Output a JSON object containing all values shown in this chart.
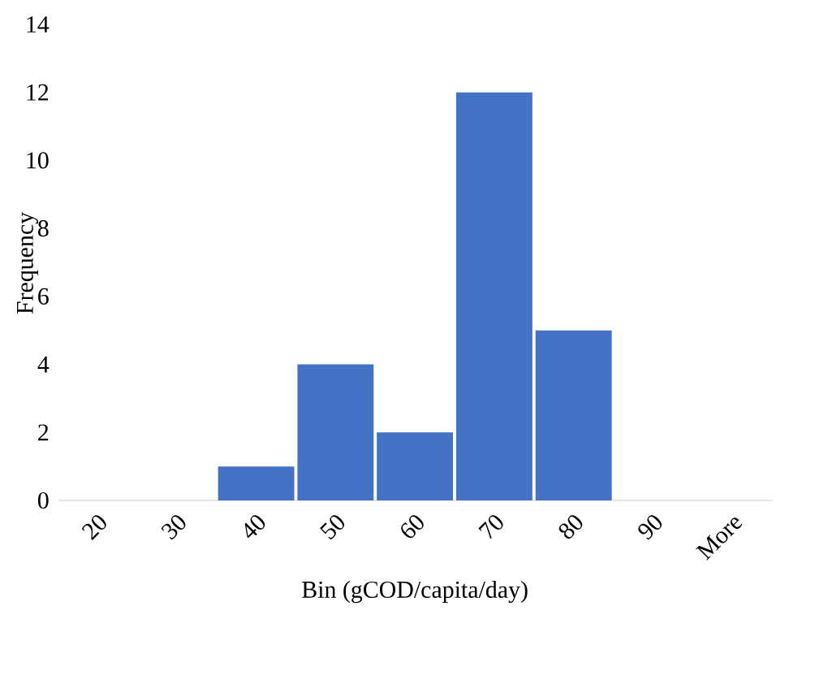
{
  "chart_data": {
    "type": "bar",
    "xlabel": "Bin (gCOD/capita/day)",
    "ylabel": "Frequency",
    "categories": [
      "20",
      "30",
      "40",
      "50",
      "60",
      "70",
      "80",
      "90",
      "More"
    ],
    "values": [
      0,
      0,
      1,
      4,
      2,
      12,
      5,
      0,
      0
    ],
    "color": "#4472c4",
    "ylim": [
      0,
      14
    ],
    "yticks": [
      0,
      2,
      4,
      6,
      8,
      10,
      12,
      14
    ]
  }
}
